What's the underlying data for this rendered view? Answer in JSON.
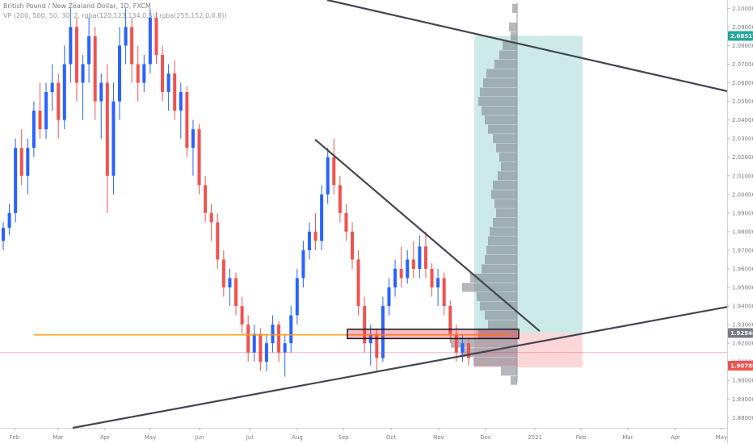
{
  "chart_data": {
    "type": "candlestick",
    "title": "British Pound / New Zealand Dollar, 1D, FXCM",
    "indicator_label": "VP (200, 500, 50, 30, 2, rgba(120,123,134,0.5), rgba(255,152,0,0.8))",
    "x_ticks": [
      "Feb",
      "Mar",
      "Apr",
      "May",
      "Jun",
      "Jul",
      "Aug",
      "Sep",
      "Oct",
      "Nov",
      "Dec",
      "2021",
      "Feb",
      "Mar",
      "Apr",
      "May"
    ],
    "y_ticks": [
      "2.10000",
      "2.09000",
      "2.08000",
      "2.07000",
      "2.06000",
      "2.05000",
      "2.04000",
      "2.03000",
      "2.02000",
      "2.01000",
      "2.00000",
      "1.99000",
      "1.98000",
      "1.97000",
      "1.96000",
      "1.95000",
      "1.94000",
      "1.93000",
      "1.92000",
      "1.91000",
      "1.90000",
      "1.89000",
      "1.88000"
    ],
    "ylim": [
      1.8745,
      2.1045
    ],
    "price_labels": [
      {
        "text": "2.08517",
        "value": 2.08517,
        "color": "#26a69a"
      },
      {
        "text": "1.92548",
        "value": 1.92548,
        "color": "#787b86"
      },
      {
        "text": "1.90789",
        "value": 1.90789,
        "color": "#ef5350"
      }
    ],
    "candles": [
      [
        1.975,
        1.985,
        1.97,
        1.982
      ],
      [
        1.982,
        1.995,
        1.978,
        1.99
      ],
      [
        1.99,
        2.03,
        1.985,
        2.025
      ],
      [
        2.025,
        2.035,
        2.005,
        2.01
      ],
      [
        2.01,
        2.03,
        2.0,
        2.025
      ],
      [
        2.025,
        2.05,
        2.02,
        2.045
      ],
      [
        2.045,
        2.06,
        2.03,
        2.035
      ],
      [
        2.035,
        2.06,
        2.03,
        2.055
      ],
      [
        2.055,
        2.07,
        2.045,
        2.06
      ],
      [
        2.06,
        2.065,
        2.03,
        2.04
      ],
      [
        2.04,
        2.08,
        2.035,
        2.07
      ],
      [
        2.07,
        2.1,
        2.06,
        2.09
      ],
      [
        2.09,
        2.095,
        2.05,
        2.06
      ],
      [
        2.06,
        2.075,
        2.04,
        2.07
      ],
      [
        2.07,
        2.095,
        2.06,
        2.085
      ],
      [
        2.085,
        2.09,
        2.04,
        2.05
      ],
      [
        2.05,
        2.065,
        2.03,
        2.06
      ],
      [
        2.06,
        2.07,
        1.99,
        2.01
      ],
      [
        2.01,
        2.06,
        2.0,
        2.05
      ],
      [
        2.05,
        2.09,
        2.04,
        2.08
      ],
      [
        2.08,
        2.1,
        2.07,
        2.09
      ],
      [
        2.09,
        2.095,
        2.06,
        2.07
      ],
      [
        2.07,
        2.08,
        2.05,
        2.06
      ],
      [
        2.06,
        2.075,
        2.055,
        2.07
      ],
      [
        2.07,
        2.1,
        2.065,
        2.095
      ],
      [
        2.095,
        2.098,
        2.07,
        2.075
      ],
      [
        2.075,
        2.08,
        2.05,
        2.055
      ],
      [
        2.055,
        2.07,
        2.045,
        2.065
      ],
      [
        2.065,
        2.072,
        2.04,
        2.045
      ],
      [
        2.045,
        2.06,
        2.03,
        2.055
      ],
      [
        2.055,
        2.058,
        2.02,
        2.025
      ],
      [
        2.025,
        2.04,
        2.01,
        2.035
      ],
      [
        2.035,
        2.038,
        2.0,
        2.005
      ],
      [
        2.005,
        2.01,
        1.985,
        1.99
      ],
      [
        1.99,
        1.995,
        1.975,
        1.985
      ],
      [
        1.985,
        1.99,
        1.96,
        1.965
      ],
      [
        1.965,
        1.97,
        1.945,
        1.95
      ],
      [
        1.95,
        1.96,
        1.94,
        1.955
      ],
      [
        1.955,
        1.958,
        1.935,
        1.94
      ],
      [
        1.94,
        1.945,
        1.925,
        1.93
      ],
      [
        1.93,
        1.935,
        1.91,
        1.915
      ],
      [
        1.915,
        1.93,
        1.91,
        1.925
      ],
      [
        1.925,
        1.928,
        1.905,
        1.91
      ],
      [
        1.91,
        1.925,
        1.905,
        1.92
      ],
      [
        1.92,
        1.935,
        1.915,
        1.93
      ],
      [
        1.93,
        1.932,
        1.91,
        1.915
      ],
      [
        1.915,
        1.925,
        1.902,
        1.92
      ],
      [
        1.92,
        1.94,
        1.915,
        1.935
      ],
      [
        1.935,
        1.96,
        1.93,
        1.955
      ],
      [
        1.955,
        1.975,
        1.95,
        1.97
      ],
      [
        1.97,
        1.985,
        1.965,
        1.98
      ],
      [
        1.98,
        1.99,
        1.97,
        1.975
      ],
      [
        1.975,
        2.005,
        1.97,
        2.0
      ],
      [
        2.0,
        2.025,
        1.995,
        2.02
      ],
      [
        2.02,
        2.03,
        2.0,
        2.005
      ],
      [
        2.005,
        2.01,
        1.985,
        1.99
      ],
      [
        1.99,
        1.995,
        1.975,
        1.98
      ],
      [
        1.98,
        1.985,
        1.96,
        1.965
      ],
      [
        1.965,
        1.97,
        1.935,
        1.94
      ],
      [
        1.94,
        1.945,
        1.915,
        1.92
      ],
      [
        1.92,
        1.93,
        1.908,
        1.925
      ],
      [
        1.925,
        1.928,
        1.905,
        1.912
      ],
      [
        1.912,
        1.945,
        1.91,
        1.94
      ],
      [
        1.94,
        1.955,
        1.935,
        1.95
      ],
      [
        1.95,
        1.965,
        1.945,
        1.96
      ],
      [
        1.96,
        1.972,
        1.95,
        1.955
      ],
      [
        1.955,
        1.97,
        1.952,
        1.965
      ],
      [
        1.965,
        1.975,
        1.955,
        1.96
      ],
      [
        1.96,
        1.978,
        1.955,
        1.972
      ],
      [
        1.972,
        1.98,
        1.955,
        1.96
      ],
      [
        1.96,
        1.963,
        1.945,
        1.95
      ],
      [
        1.95,
        1.96,
        1.94,
        1.955
      ],
      [
        1.955,
        1.958,
        1.935,
        1.94
      ],
      [
        1.94,
        1.943,
        1.92,
        1.925
      ],
      [
        1.925,
        1.93,
        1.91,
        1.915
      ],
      [
        1.915,
        1.925,
        1.91,
        1.92
      ],
      [
        1.92,
        1.923,
        1.908,
        1.912
      ]
    ],
    "volume_profile": {
      "value_area_bounds": [
        1.906,
        2.085
      ],
      "levels": [
        {
          "price": 2.1,
          "width": 6
        },
        {
          "price": 2.09,
          "width": 10
        },
        {
          "price": 2.085,
          "width": 8
        },
        {
          "price": 2.08,
          "width": 18
        },
        {
          "price": 2.075,
          "width": 22
        },
        {
          "price": 2.07,
          "width": 28
        },
        {
          "price": 2.065,
          "width": 38
        },
        {
          "price": 2.06,
          "width": 42
        },
        {
          "price": 2.055,
          "width": 46
        },
        {
          "price": 2.05,
          "width": 48
        },
        {
          "price": 2.045,
          "width": 44
        },
        {
          "price": 2.04,
          "width": 40
        },
        {
          "price": 2.035,
          "width": 36
        },
        {
          "price": 2.03,
          "width": 30
        },
        {
          "price": 2.025,
          "width": 26
        },
        {
          "price": 2.02,
          "width": 22
        },
        {
          "price": 2.015,
          "width": 20
        },
        {
          "price": 2.01,
          "width": 24
        },
        {
          "price": 2.005,
          "width": 30
        },
        {
          "price": 2.0,
          "width": 32
        },
        {
          "price": 1.995,
          "width": 28
        },
        {
          "price": 1.99,
          "width": 26
        },
        {
          "price": 1.985,
          "width": 30
        },
        {
          "price": 1.98,
          "width": 34
        },
        {
          "price": 1.975,
          "width": 36
        },
        {
          "price": 1.97,
          "width": 38
        },
        {
          "price": 1.965,
          "width": 40
        },
        {
          "price": 1.96,
          "width": 44
        },
        {
          "price": 1.955,
          "width": 58
        },
        {
          "price": 1.95,
          "width": 68
        },
        {
          "price": 1.945,
          "width": 50
        },
        {
          "price": 1.94,
          "width": 46
        },
        {
          "price": 1.935,
          "width": 40
        },
        {
          "price": 1.93,
          "width": 36
        },
        {
          "price": 1.925,
          "width": 48
        },
        {
          "price": 1.92,
          "width": 82
        },
        {
          "price": 1.915,
          "width": 70
        },
        {
          "price": 1.91,
          "width": 54
        },
        {
          "price": 1.905,
          "width": 20
        },
        {
          "price": 1.9,
          "width": 8
        }
      ]
    }
  }
}
